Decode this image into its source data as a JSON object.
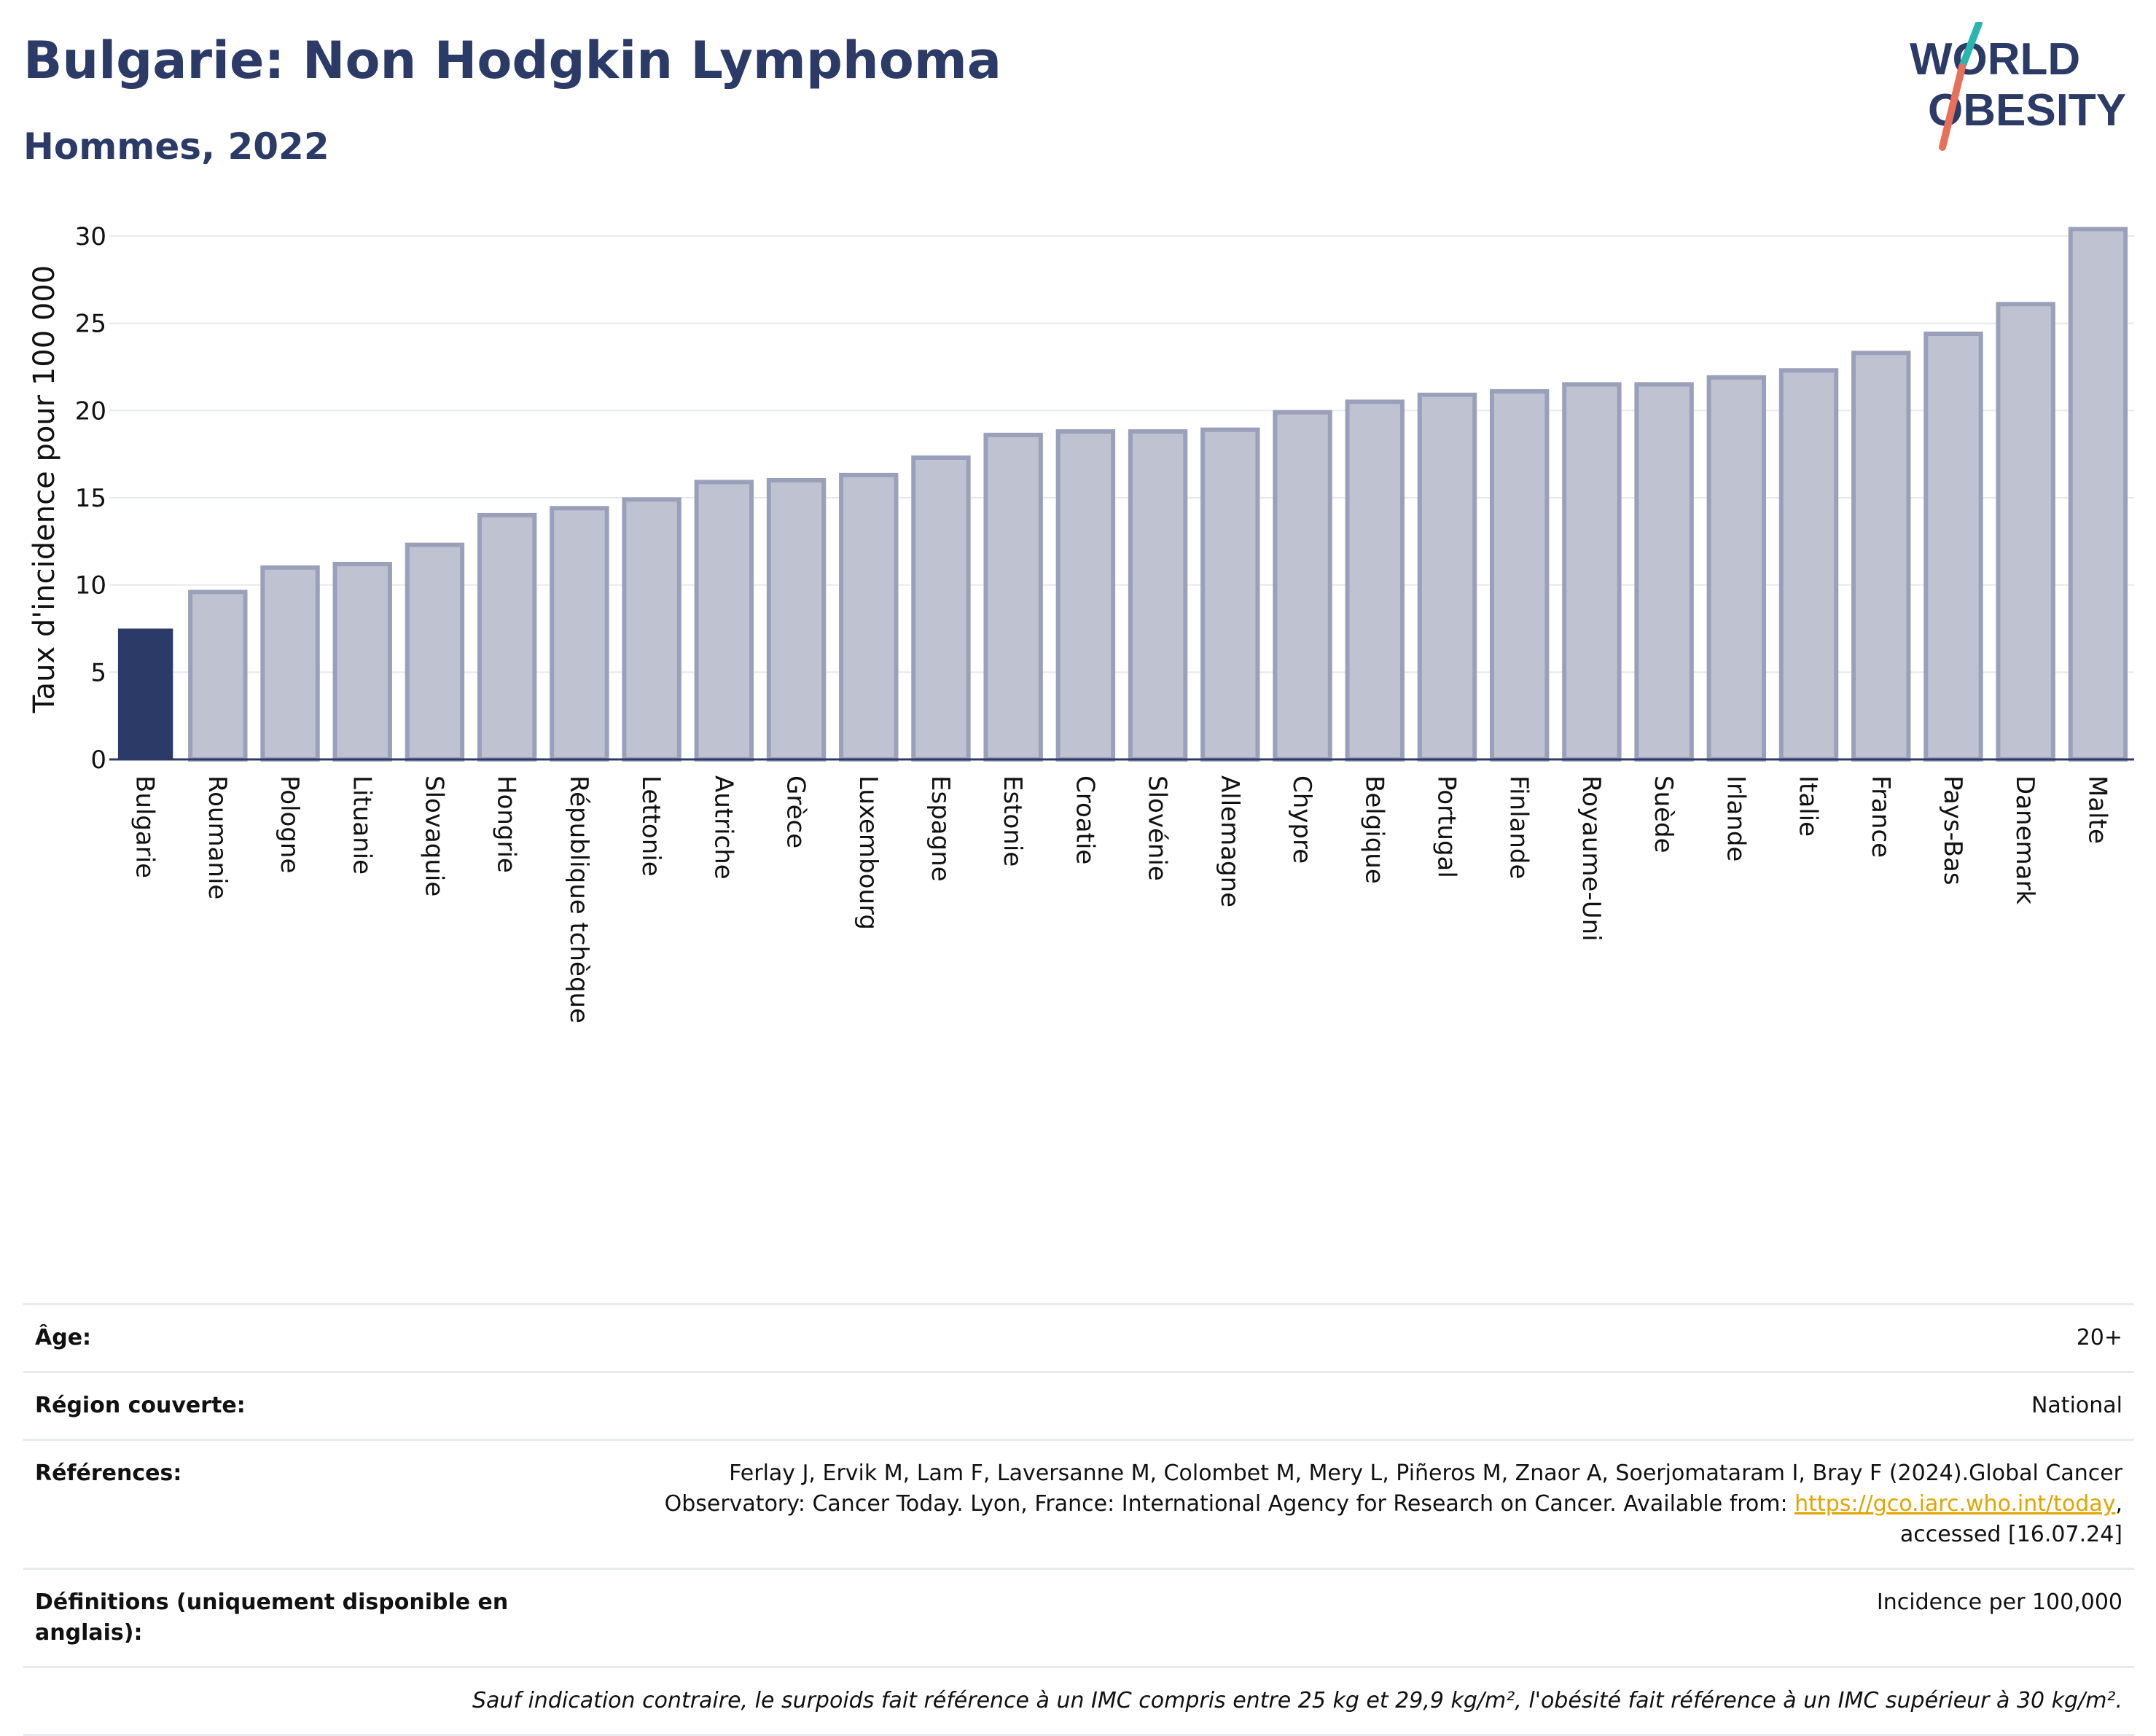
{
  "title": "Bulgarie: Non Hodgkin Lymphoma",
  "subtitle": "Hommes, 2022",
  "logo": {
    "line1": "WORLD",
    "line2": "OBESITY",
    "colors": {
      "text": "#2b3a67",
      "slash_top": "#2bb5b0",
      "slash_bottom": "#e8705a"
    }
  },
  "chart_data": {
    "type": "bar",
    "ylabel": "Taux d'incidence pour 100 000",
    "ylim": [
      0,
      31
    ],
    "yticks": [
      0,
      5,
      10,
      15,
      20,
      25,
      30
    ],
    "grid": true,
    "highlight": "Bulgarie",
    "colors": {
      "highlight": "#2b3a67",
      "bar_fill": "#bfc3d1",
      "bar_stroke": "#9aa0ba",
      "grid": "#e6e8ef",
      "axis": "#2b3a67"
    },
    "categories": [
      "Bulgarie",
      "Roumanie",
      "Pologne",
      "Lituanie",
      "Slovaquie",
      "Hongrie",
      "République tchèque",
      "Lettonie",
      "Autriche",
      "Grèce",
      "Luxembourg",
      "Espagne",
      "Estonie",
      "Croatie",
      "Slovénie",
      "Allemagne",
      "Chypre",
      "Belgique",
      "Portugal",
      "Finlande",
      "Royaume-Uni",
      "Suède",
      "Irlande",
      "Italie",
      "France",
      "Pays-Bas",
      "Danemark",
      "Malte"
    ],
    "values": [
      7.5,
      9.6,
      11.0,
      11.2,
      12.3,
      14.0,
      14.4,
      14.9,
      15.9,
      16.0,
      16.3,
      17.3,
      18.6,
      18.8,
      18.8,
      18.9,
      19.9,
      20.5,
      20.9,
      21.1,
      21.5,
      21.5,
      21.9,
      22.3,
      23.3,
      24.4,
      26.1,
      30.4
    ]
  },
  "meta": {
    "age_label": "Âge:",
    "age_value": "20+",
    "region_label": "Région couverte:",
    "region_value": "National",
    "refs_label": "Références:",
    "refs_line1": "Ferlay J, Ervik M, Lam F, Laversanne M, Colombet M, Mery L, Piñeros M, Znaor A, Soerjomataram I, Bray F (2024).Global Cancer",
    "refs_line2": "Observatory: Cancer Today. Lyon, France: International Agency for Research on Cancer. Available from:",
    "refs_link": "https://gco.iarc.who.int/today",
    "refs_line3": "accessed [16.07.24]",
    "defs_label": "Définitions (uniquement disponible en anglais):",
    "defs_value": "Incidence per 100,000",
    "note": "Sauf indication contraire, le surpoids fait référence à un IMC compris entre 25 kg et 29,9 kg/m², l'obésité fait référence à un IMC supérieur à 30 kg/m²."
  }
}
